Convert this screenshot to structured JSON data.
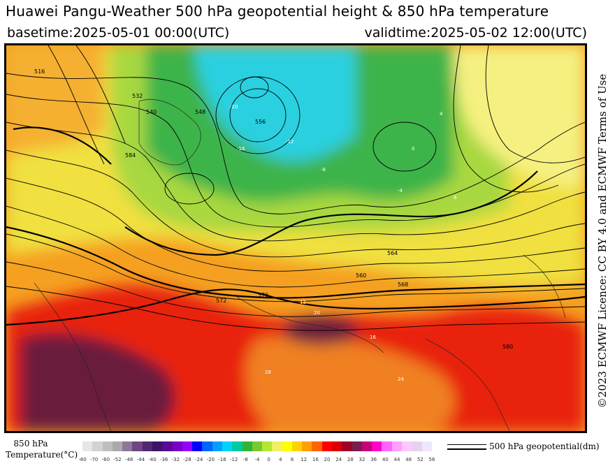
{
  "header": {
    "title": "Huawei Pangu-Weather 500 hPa geopotential height & 850 hPa temperature",
    "basetime": "basetime:2025-05-01 00:00(UTC)",
    "validtime": "validtime:2025-05-02 12:00(UTC)"
  },
  "license": "©2023 ECMWF Licence: CC BY 4.0 and ECMWF Terms of Use",
  "legend": {
    "temperature_label_line1": "850 hPa",
    "temperature_label_line2": "Temperature(°C)",
    "ticks": [
      "-80",
      "-70",
      "-60",
      "-52",
      "-48",
      "-44",
      "-40",
      "-36",
      "-32",
      "-28",
      "-24",
      "-20",
      "-16",
      "-12",
      "-8",
      "-4",
      "0",
      "4",
      "8",
      "12",
      "16",
      "20",
      "24",
      "28",
      "32",
      "36",
      "40",
      "44",
      "48",
      "52",
      "56"
    ],
    "colors": [
      "#e6e6e6",
      "#d2d2d2",
      "#bebebe",
      "#aaaaaa",
      "#8c7896",
      "#6e4682",
      "#50286e",
      "#3c1464",
      "#5a0a96",
      "#7800c8",
      "#9600ff",
      "#0000ff",
      "#0064ff",
      "#00a0ff",
      "#00d2ff",
      "#00c8a0",
      "#32b432",
      "#78c832",
      "#b4e632",
      "#f0f064",
      "#ffff00",
      "#ffd200",
      "#ffa000",
      "#ff6400",
      "#ff0000",
      "#dc0000",
      "#a00028",
      "#781e50",
      "#c80078",
      "#ff00c8",
      "#ff64ff",
      "#ffa0ff",
      "#ffc8ff",
      "#e6d2f0",
      "#f0e6fa"
    ],
    "line_label": "500 hPa geopotential(dm)"
  },
  "map": {
    "contour_labels": [
      "516",
      "532",
      "540",
      "548",
      "556",
      "560",
      "564",
      "568",
      "572",
      "576",
      "580",
      "584"
    ],
    "temp_labels": [
      "-20",
      "-16",
      "-12",
      "-8",
      "-4",
      "0",
      "4",
      "8",
      "12",
      "16",
      "20",
      "24",
      "28"
    ],
    "colors": {
      "cold": "#2ad0e0",
      "cool": "#3cb44a",
      "mild": "#a8d840",
      "warm": "#f0e040",
      "warmer": "#f5a020",
      "hot": "#e82010",
      "hottest": "#6a1e3c"
    }
  }
}
